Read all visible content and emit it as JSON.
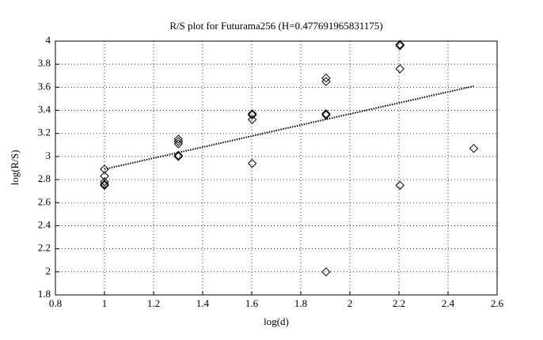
{
  "chart_data": {
    "type": "scatter",
    "title": "R/S plot for Futurama256 (H=0.477691965831175)",
    "xlabel": "log(d)",
    "ylabel": "log(R/S)",
    "xlim": [
      0.8,
      2.6
    ],
    "ylim": [
      1.8,
      4
    ],
    "xticks": [
      0.8,
      1,
      1.2,
      1.4,
      1.6,
      1.8,
      2,
      2.2,
      2.4,
      2.6
    ],
    "yticks": [
      1.8,
      2,
      2.2,
      2.4,
      2.6,
      2.8,
      3,
      3.2,
      3.4,
      3.6,
      3.8,
      4
    ],
    "grid": true,
    "series": [
      {
        "color": "#000000",
        "marker": "diamond",
        "x": [
          1,
          1,
          1,
          1,
          1,
          1.301,
          1.301,
          1.301,
          1.301,
          1.301,
          1.602,
          1.602,
          1.602,
          1.602,
          1.903,
          1.903,
          1.903,
          1.903,
          1.903,
          2.204,
          2.204,
          2.204,
          2.204,
          2.505
        ],
        "values": [
          2.89,
          2.83,
          2.78,
          2.76,
          2.75,
          3.15,
          3.13,
          3.11,
          3.01,
          3.0,
          3.37,
          3.36,
          3.32,
          2.94,
          3.68,
          3.65,
          3.37,
          3.36,
          2.0,
          3.97,
          3.96,
          3.76,
          2.75,
          3.07
        ]
      },
      {
        "color": "#000000",
        "marker": "dotted-line",
        "x": [
          1,
          2.505
        ],
        "values": [
          2.89,
          3.61
        ]
      }
    ]
  }
}
